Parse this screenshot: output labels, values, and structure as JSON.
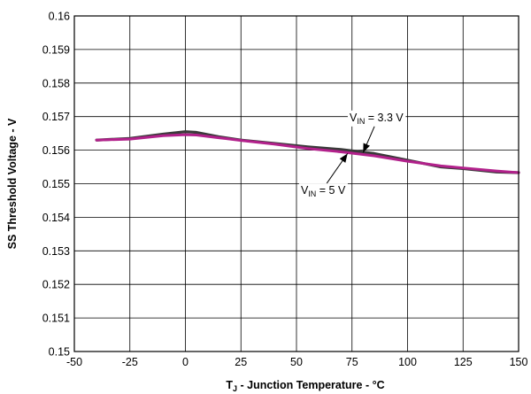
{
  "chart_data": {
    "type": "line",
    "xlabel": {
      "main": "T",
      "sub": "J",
      "rest": " - Junction Temperature - °C"
    },
    "ylabel": "SS Threshold Voltage - V",
    "xlim": [
      -50,
      150
    ],
    "ylim": [
      0.15,
      0.16
    ],
    "xticks": [
      "-50",
      "-25",
      "0",
      "25",
      "50",
      "75",
      "100",
      "125",
      "150"
    ],
    "yticks": [
      "0.15",
      "0.151",
      "0.152",
      "0.153",
      "0.154",
      "0.155",
      "0.156",
      "0.157",
      "0.158",
      "0.159",
      "0.16"
    ],
    "grid": true,
    "series": [
      {
        "color": "#3a3a3a",
        "x": [
          -40,
          -25,
          -10,
          0,
          5,
          15,
          25,
          40,
          55,
          70,
          85,
          100,
          115,
          125,
          140,
          150
        ],
        "y": [
          0.1563,
          0.15635,
          0.15648,
          0.15655,
          0.15653,
          0.1564,
          0.1563,
          0.1562,
          0.1561,
          0.15602,
          0.1559,
          0.1557,
          0.1555,
          0.15545,
          0.15535,
          0.15533
        ]
      },
      {
        "color": "#b2218b",
        "x": [
          -40,
          -25,
          -10,
          0,
          5,
          15,
          25,
          40,
          55,
          70,
          85,
          100,
          115,
          125,
          140,
          150
        ],
        "y": [
          0.1563,
          0.15633,
          0.15643,
          0.15646,
          0.15645,
          0.15637,
          0.15629,
          0.15618,
          0.15605,
          0.15595,
          0.15583,
          0.15567,
          0.15553,
          0.15547,
          0.15538,
          0.15533
        ]
      }
    ],
    "annotations": [
      {
        "label": {
          "main": "V",
          "sub": "IN",
          "rest": " = 3.3 V"
        },
        "text_at": [
          86,
          0.15697
        ],
        "arrow_to": [
          80,
          0.15593
        ]
      },
      {
        "label": {
          "main": "V",
          "sub": "IN",
          "rest": " = 5 V"
        },
        "text_at": [
          62,
          0.1548
        ],
        "arrow_to": [
          73,
          0.1559
        ]
      }
    ]
  }
}
